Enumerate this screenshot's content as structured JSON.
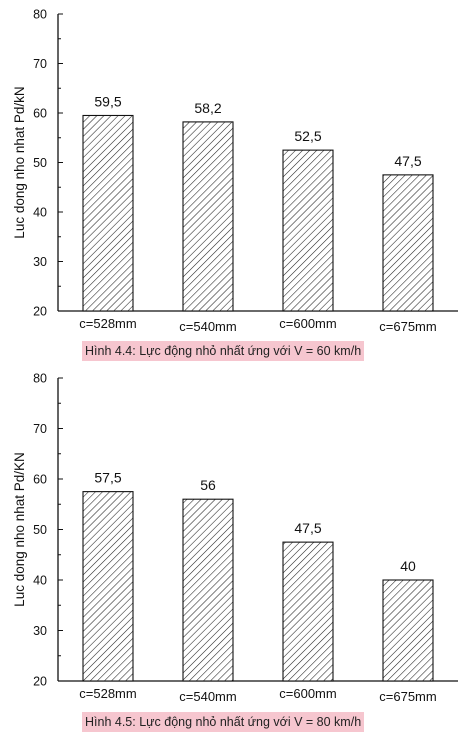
{
  "chart_data": [
    {
      "type": "bar",
      "categories": [
        "c=528mm",
        "c=540mm",
        "c=600mm",
        "c=675mm"
      ],
      "values": [
        59.5,
        58.2,
        52.5,
        47.5
      ],
      "value_labels": [
        "59,5",
        "58,2",
        "52,5",
        "47,5"
      ],
      "ylabel": "Luc dong nho nhat Pd/kN",
      "ylim": [
        20,
        80
      ],
      "yticks": [
        20,
        30,
        40,
        50,
        60,
        70,
        80
      ],
      "caption": "Hình 4.4: Lực động nhỏ nhất ứng với V = 60 km/h",
      "bar_fill": "diagonal-hatch",
      "grid": false
    },
    {
      "type": "bar",
      "categories": [
        "c=528mm",
        "c=540mm",
        "c=600mm",
        "c=675mm"
      ],
      "values": [
        57.5,
        56,
        47.5,
        40
      ],
      "value_labels": [
        "57,5",
        "56",
        "47,5",
        "40"
      ],
      "ylabel": "Luc dong nho nhat Pd/KN",
      "ylim": [
        20,
        80
      ],
      "yticks": [
        20,
        30,
        40,
        50,
        60,
        70,
        80
      ],
      "caption": "Hình 4.5: Lực động nhỏ nhất ứng với V = 80 km/h",
      "bar_fill": "diagonal-hatch",
      "grid": false
    }
  ],
  "colors": {
    "caption_bg": "#f6c6cf",
    "axis": "#111111",
    "bar_edge": "#111111",
    "hatch": "#222222"
  }
}
